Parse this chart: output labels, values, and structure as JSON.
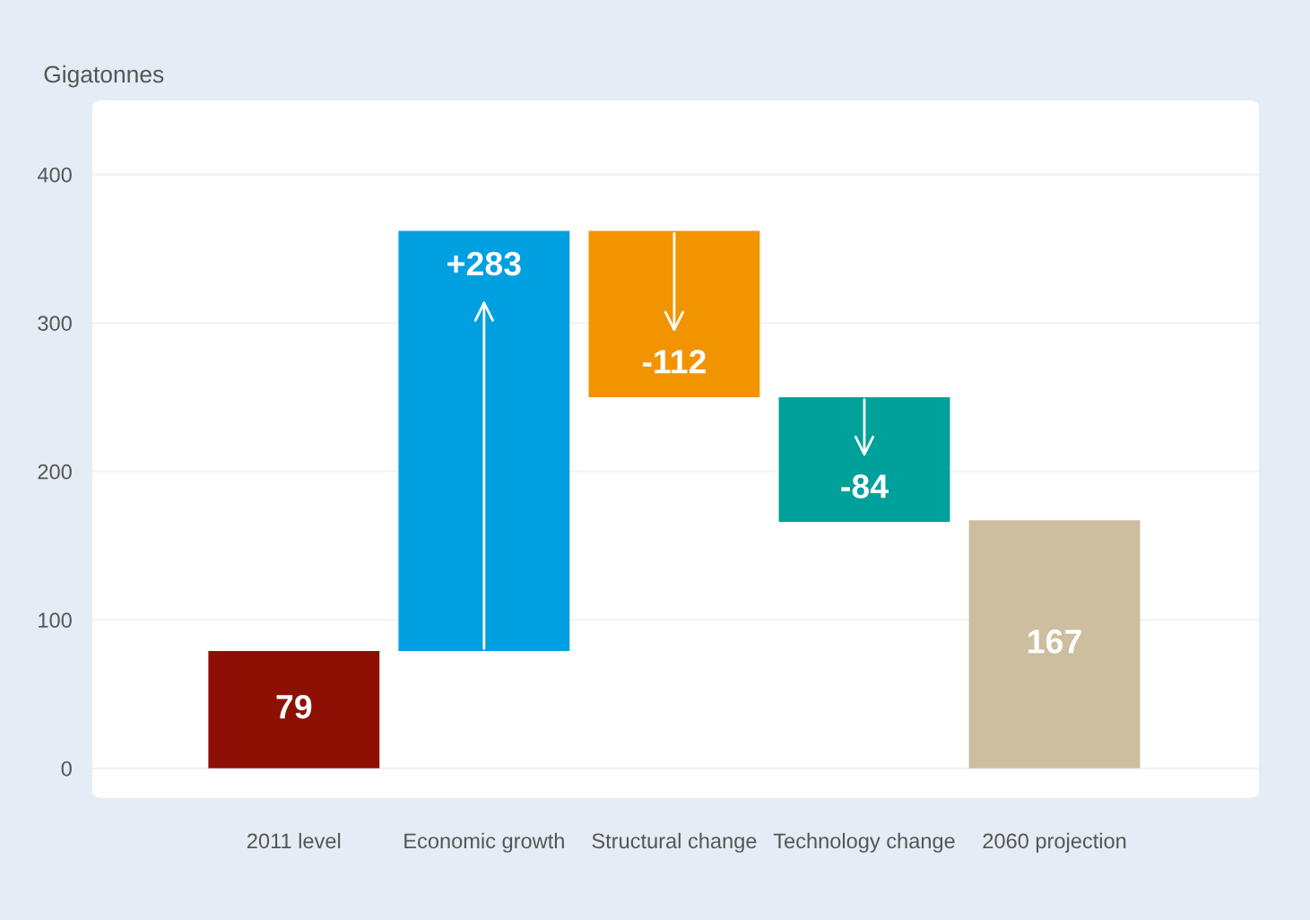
{
  "chart_data": {
    "type": "bar",
    "ylabel": "Gigatonnes",
    "categories": [
      "2011 level",
      "Economic growth",
      "Structural change",
      "Technology change",
      "2060 projection"
    ],
    "values": [
      79,
      283,
      -112,
      -84,
      167
    ],
    "base": [
      0,
      79,
      362,
      250,
      0
    ],
    "colors": [
      "#8e1005",
      "#00a0e0",
      "#f29400",
      "#00a19a",
      "#cdbe9f"
    ],
    "value_labels": [
      "79",
      "+283",
      "-112",
      "-84",
      "167"
    ],
    "ylim": [
      -20,
      450
    ],
    "yticks": [
      0,
      100,
      200,
      300,
      400
    ],
    "grid": "y"
  }
}
